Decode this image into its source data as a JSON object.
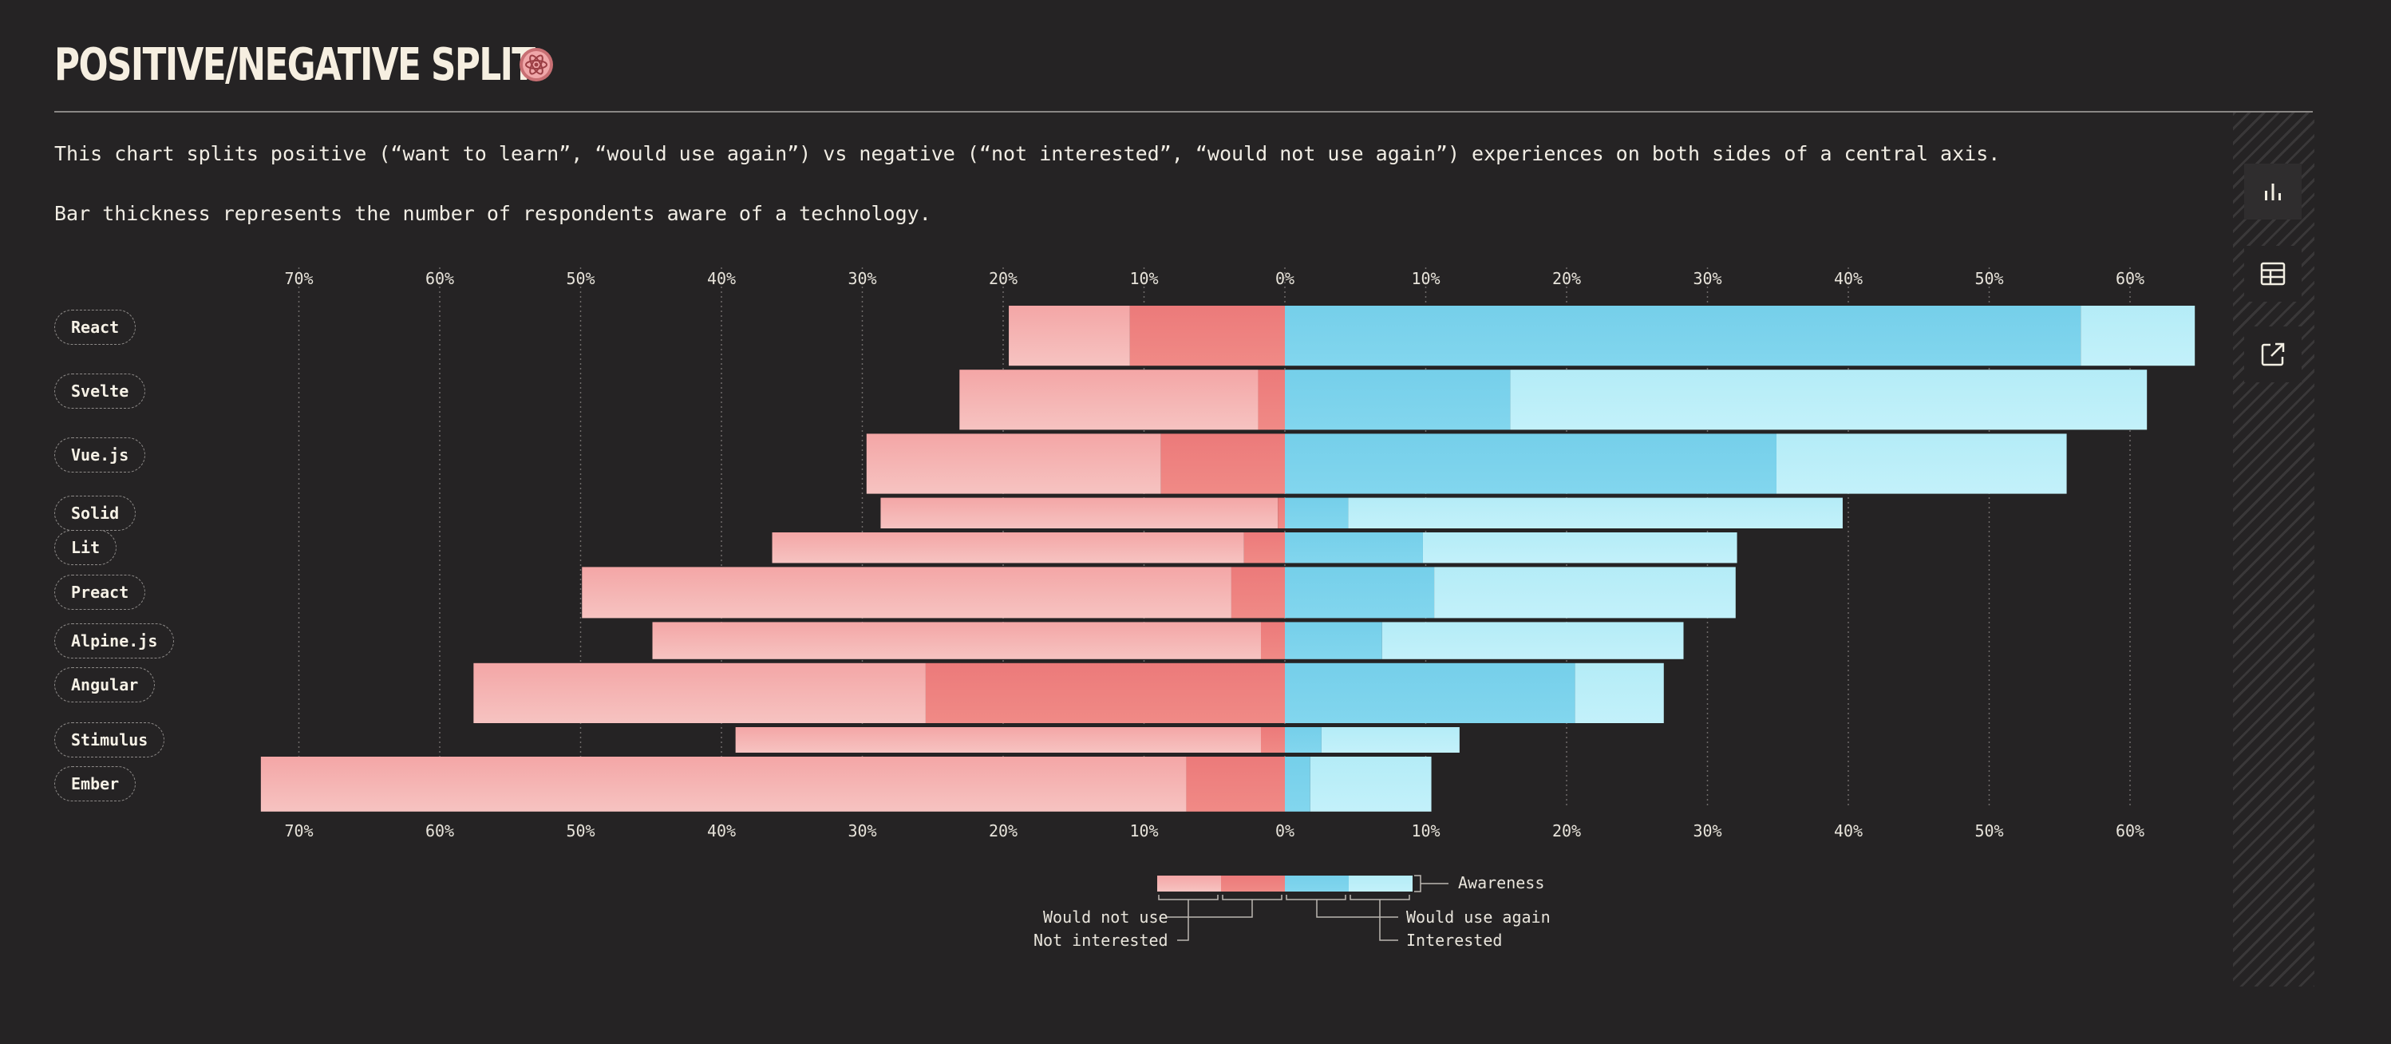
{
  "header": {
    "title": "POSITIVE/NEGATIVE SPLIT"
  },
  "description": {
    "line1": "This chart splits positive (“want to learn”, “would use again”) vs negative (“not interested”, “would not use again”) experiences on both sides of a central axis.",
    "line2": "Bar thickness represents the number of respondents aware of a technology."
  },
  "sidebar": {
    "buttons": [
      {
        "icon": "bar-chart-icon",
        "active": true
      },
      {
        "icon": "table-icon",
        "active": false
      },
      {
        "icon": "external-link-icon",
        "active": false
      }
    ]
  },
  "colors": {
    "would_not_use": "#f4a6a6",
    "not_interested": "#ec7a7a",
    "would_use_again": "#75cfea",
    "interested": "#b4ecf7",
    "background": "#252324"
  },
  "chart_data": {
    "type": "bar",
    "orientation": "horizontal-diverging",
    "axis_ticks": [
      "70%",
      "60%",
      "50%",
      "40%",
      "30%",
      "20%",
      "10%",
      "0%",
      "10%",
      "20%",
      "30%",
      "40%",
      "50%",
      "60%"
    ],
    "xlim": [
      -70,
      60
    ],
    "grid": true,
    "legend_placement": "bottom-center",
    "categories": [
      "React",
      "Svelte",
      "Vue.js",
      "Solid",
      "Lit",
      "Preact",
      "Alpine.js",
      "Angular",
      "Stimulus",
      "Ember"
    ],
    "series": [
      {
        "name": "Would not use",
        "values": [
          8.6,
          21.2,
          20.9,
          28.2,
          33.5,
          46.1,
          43.2,
          32.1,
          37.3,
          65.7
        ]
      },
      {
        "name": "Not interested",
        "values": [
          11.0,
          1.9,
          8.8,
          0.5,
          2.9,
          3.8,
          1.7,
          25.5,
          1.7,
          7.0
        ]
      },
      {
        "name": "Would use again",
        "values": [
          56.5,
          16.0,
          34.9,
          4.5,
          9.8,
          10.6,
          6.9,
          20.6,
          2.6,
          1.8
        ]
      },
      {
        "name": "Interested",
        "values": [
          8.1,
          45.2,
          20.6,
          35.1,
          22.3,
          21.4,
          21.4,
          6.3,
          9.8,
          8.6
        ]
      }
    ],
    "awareness": [
      47,
      47,
      47,
      24,
      24,
      40,
      29,
      47,
      20,
      43
    ],
    "legend": {
      "would_not_use": "Would not use",
      "not_interested": "Not interested",
      "would_use_again": "Would use again",
      "interested": "Interested",
      "awareness": "Awareness"
    }
  }
}
